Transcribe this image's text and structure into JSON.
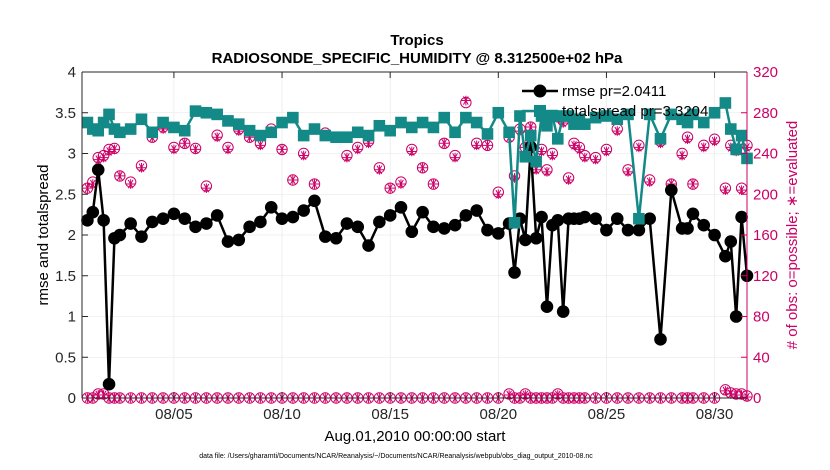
{
  "chart_data": {
    "type": "line",
    "title": "Tropics",
    "subtitle": "RADIOSONDE_SPECIFIC_HUMIDITY @ 8.312500e+02 hPa",
    "xlabel": "Aug.01,2010 00:00:00 start",
    "ylabel_left": "rmse and totalspread",
    "ylabel_right": "# of obs: o=possible; ∗=evaluated",
    "footnote": "data file: /Users/gharamti/Documents/NCAR/Reanalysis/~/Documents/NCAR/Reanalysis/webpub/obs_diag_output_2010-08.nc",
    "x_range": [
      0.75,
      31.5
    ],
    "ylim_left": [
      0,
      4
    ],
    "ylim_right": [
      0,
      320
    ],
    "x_ticks": [
      {
        "x": 5,
        "label": "08/05"
      },
      {
        "x": 10,
        "label": "08/10"
      },
      {
        "x": 15,
        "label": "08/15"
      },
      {
        "x": 20,
        "label": "08/20"
      },
      {
        "x": 25,
        "label": "08/25"
      },
      {
        "x": 30,
        "label": "08/30"
      }
    ],
    "y_ticks_left": [
      {
        "v": 0,
        "label": "0"
      },
      {
        "v": 0.5,
        "label": "0.5"
      },
      {
        "v": 1,
        "label": "1"
      },
      {
        "v": 1.5,
        "label": "1.5"
      },
      {
        "v": 2,
        "label": "2"
      },
      {
        "v": 2.5,
        "label": "2.5"
      },
      {
        "v": 3,
        "label": "3"
      },
      {
        "v": 3.5,
        "label": "3.5"
      },
      {
        "v": 4,
        "label": "4"
      }
    ],
    "y_ticks_right": [
      {
        "v": 0,
        "label": "0"
      },
      {
        "v": 40,
        "label": "40"
      },
      {
        "v": 80,
        "label": "80"
      },
      {
        "v": 120,
        "label": "120"
      },
      {
        "v": 160,
        "label": "160"
      },
      {
        "v": 200,
        "label": "200"
      },
      {
        "v": 240,
        "label": "240"
      },
      {
        "v": 280,
        "label": "280"
      },
      {
        "v": 320,
        "label": "320"
      }
    ],
    "legend": {
      "position": "top-right",
      "entries": [
        {
          "series": "rmse",
          "label": "rmse pr=2.0411"
        },
        {
          "series": "totalspread",
          "label": "totalspread pr=3.3204"
        }
      ]
    },
    "colors": {
      "rmse": "#000000",
      "totalspread": "#138a87",
      "obs": "#cc0066"
    },
    "series": [
      {
        "name": "rmse",
        "axis": "left",
        "x": [
          1.0,
          1.25,
          1.5,
          1.75,
          2.0,
          2.25,
          2.5,
          3.0,
          3.5,
          4.0,
          4.5,
          5.0,
          5.5,
          6.0,
          6.5,
          7.0,
          7.5,
          8.0,
          8.5,
          9.0,
          9.5,
          10.0,
          10.5,
          11.0,
          11.5,
          12.0,
          12.5,
          13.0,
          13.5,
          14.0,
          14.5,
          15.0,
          15.5,
          16.0,
          16.5,
          17.0,
          17.5,
          18.0,
          18.5,
          19.0,
          19.5,
          20.0,
          20.5,
          20.75,
          21.0,
          21.25,
          21.5,
          21.75,
          22.0,
          22.25,
          22.5,
          22.75,
          23.0,
          23.25,
          23.5,
          23.75,
          24.0,
          24.5,
          25.0,
          25.5,
          26.0,
          26.5,
          27.0,
          27.5,
          28.0,
          28.5,
          28.75,
          29.0,
          29.5,
          30.0,
          30.5,
          30.75,
          31.0,
          31.25,
          31.5
        ],
        "values": [
          2.18,
          2.28,
          2.8,
          2.18,
          0.17,
          1.96,
          2.0,
          2.14,
          1.98,
          2.16,
          2.2,
          2.26,
          2.2,
          2.1,
          2.14,
          2.24,
          1.92,
          1.94,
          2.1,
          2.16,
          2.34,
          2.2,
          2.22,
          2.3,
          2.42,
          1.98,
          1.96,
          2.14,
          2.1,
          1.87,
          2.16,
          2.24,
          2.34,
          2.04,
          2.28,
          2.1,
          2.08,
          2.12,
          2.24,
          2.3,
          2.06,
          2.02,
          2.14,
          1.54,
          2.2,
          1.94,
          3.08,
          1.96,
          2.22,
          1.12,
          2.12,
          2.18,
          1.06,
          2.2,
          2.2,
          2.2,
          2.22,
          2.2,
          2.06,
          2.2,
          2.06,
          2.06,
          2.2,
          0.72,
          2.55,
          2.08,
          2.08,
          2.26,
          2.12,
          2.0,
          1.74,
          1.92,
          1.0,
          2.22,
          1.5
        ]
      },
      {
        "name": "totalspread",
        "axis": "left",
        "x": [
          1.0,
          1.25,
          1.5,
          1.75,
          2.0,
          2.25,
          2.5,
          3.0,
          3.5,
          4.0,
          4.5,
          5.0,
          5.5,
          6.0,
          6.5,
          7.0,
          7.5,
          8.0,
          8.5,
          9.0,
          9.5,
          10.0,
          10.5,
          11.0,
          11.5,
          12.0,
          12.5,
          13.0,
          13.5,
          14.0,
          14.5,
          15.0,
          15.5,
          16.0,
          16.5,
          17.0,
          17.5,
          18.0,
          18.5,
          19.0,
          19.5,
          20.0,
          20.5,
          20.75,
          21.0,
          21.25,
          21.5,
          21.75,
          22.0,
          22.25,
          22.5,
          22.75,
          23.0,
          23.25,
          23.5,
          23.75,
          24.0,
          24.5,
          25.0,
          25.5,
          26.0,
          26.5,
          27.0,
          27.5,
          28.0,
          28.5,
          28.75,
          29.0,
          29.5,
          30.0,
          30.5,
          30.75,
          31.0,
          31.25,
          31.5
        ],
        "values": [
          3.38,
          3.3,
          3.28,
          3.38,
          3.48,
          3.3,
          3.26,
          3.3,
          3.42,
          3.26,
          3.38,
          3.32,
          3.28,
          3.52,
          3.5,
          3.48,
          3.4,
          3.36,
          3.28,
          3.22,
          3.26,
          3.38,
          3.44,
          3.22,
          3.3,
          3.22,
          3.2,
          3.2,
          3.26,
          3.22,
          3.34,
          3.28,
          3.38,
          3.32,
          3.38,
          3.32,
          3.44,
          3.26,
          3.44,
          3.38,
          3.24,
          3.5,
          3.26,
          2.15,
          3.46,
          2.96,
          3.22,
          2.9,
          3.46,
          3.34,
          3.46,
          3.18,
          3.46,
          3.46,
          3.36,
          3.42,
          3.36,
          3.44,
          3.46,
          3.42,
          3.48,
          2.2,
          3.48,
          3.18,
          3.48,
          3.42,
          3.38,
          3.48,
          3.38,
          3.5,
          3.62,
          3.3,
          3.05,
          3.22,
          2.94
        ]
      }
    ],
    "obs": {
      "axis": "right",
      "x": [
        1.0,
        1.25,
        1.5,
        1.75,
        2.0,
        2.25,
        2.5,
        3.0,
        3.5,
        4.0,
        4.5,
        5.0,
        5.5,
        6.0,
        6.5,
        7.0,
        7.5,
        8.0,
        8.5,
        9.0,
        9.5,
        10.0,
        10.5,
        11.0,
        11.5,
        12.0,
        12.5,
        13.0,
        13.5,
        14.0,
        14.5,
        15.0,
        15.5,
        16.0,
        16.5,
        17.0,
        17.5,
        18.0,
        18.5,
        19.0,
        19.5,
        20.0,
        20.5,
        20.75,
        21.0,
        21.25,
        21.5,
        21.75,
        22.0,
        22.25,
        22.5,
        22.75,
        23.0,
        23.25,
        23.5,
        23.75,
        24.0,
        24.5,
        25.0,
        25.5,
        26.0,
        26.5,
        27.0,
        27.5,
        28.0,
        28.5,
        28.75,
        29.0,
        29.5,
        30.0,
        30.5,
        30.75,
        31.0,
        31.25,
        31.5
      ],
      "possible_top": [
        206,
        212,
        236,
        238,
        244,
        245,
        218,
        212,
        228,
        256,
        266,
        246,
        250,
        245,
        208,
        258,
        246,
        264,
        256,
        250,
        264,
        244,
        214,
        240,
        210,
        260,
        256,
        238,
        246,
        252,
        226,
        206,
        212,
        244,
        226,
        210,
        250,
        238,
        290,
        250,
        248,
        202,
        256,
        218,
        264,
        246,
        266,
        226,
        244,
        224,
        240,
        276,
        272,
        216,
        250,
        246,
        238,
        236,
        244,
        264,
        224,
        248,
        214,
        252,
        210,
        240,
        256,
        210,
        248,
        254,
        206,
        248,
        244,
        206,
        248
      ],
      "evaluated_top": [
        206,
        210,
        234,
        236,
        242,
        244,
        218,
        210,
        226,
        256,
        264,
        244,
        250,
        244,
        206,
        256,
        244,
        262,
        256,
        248,
        262,
        244,
        214,
        238,
        210,
        258,
        256,
        236,
        244,
        250,
        224,
        206,
        210,
        242,
        226,
        210,
        250,
        236,
        292,
        248,
        248,
        200,
        256,
        216,
        262,
        246,
        266,
        224,
        242,
        222,
        238,
        276,
        270,
        214,
        248,
        244,
        236,
        234,
        242,
        262,
        222,
        246,
        212,
        250,
        210,
        238,
        254,
        210,
        246,
        252,
        204,
        246,
        242,
        204,
        246
      ],
      "possible_bottom": [
        0,
        0,
        4,
        4,
        0,
        0,
        0,
        0,
        0,
        0,
        0,
        0,
        0,
        0,
        0,
        0,
        0,
        0,
        0,
        0,
        0,
        0,
        0,
        0,
        0,
        0,
        0,
        0,
        0,
        0,
        0,
        0,
        0,
        0,
        0,
        0,
        0,
        0,
        0,
        0,
        0,
        0,
        4,
        0,
        0,
        4,
        0,
        0,
        0,
        0,
        0,
        4,
        0,
        0,
        0,
        0,
        0,
        0,
        0,
        0,
        0,
        0,
        0,
        0,
        0,
        0,
        0,
        0,
        0,
        0,
        8,
        5,
        4,
        4,
        2
      ],
      "evaluated_bottom": [
        0,
        0,
        3,
        3,
        0,
        0,
        0,
        0,
        0,
        0,
        0,
        0,
        0,
        0,
        0,
        0,
        0,
        0,
        0,
        0,
        0,
        0,
        0,
        0,
        0,
        0,
        0,
        0,
        0,
        0,
        0,
        0,
        0,
        0,
        0,
        0,
        0,
        0,
        0,
        0,
        0,
        0,
        3,
        0,
        0,
        3,
        0,
        0,
        0,
        0,
        0,
        3,
        0,
        0,
        0,
        0,
        0,
        0,
        0,
        0,
        0,
        0,
        0,
        0,
        0,
        0,
        0,
        0,
        0,
        0,
        7,
        4,
        3,
        3,
        1
      ]
    }
  }
}
